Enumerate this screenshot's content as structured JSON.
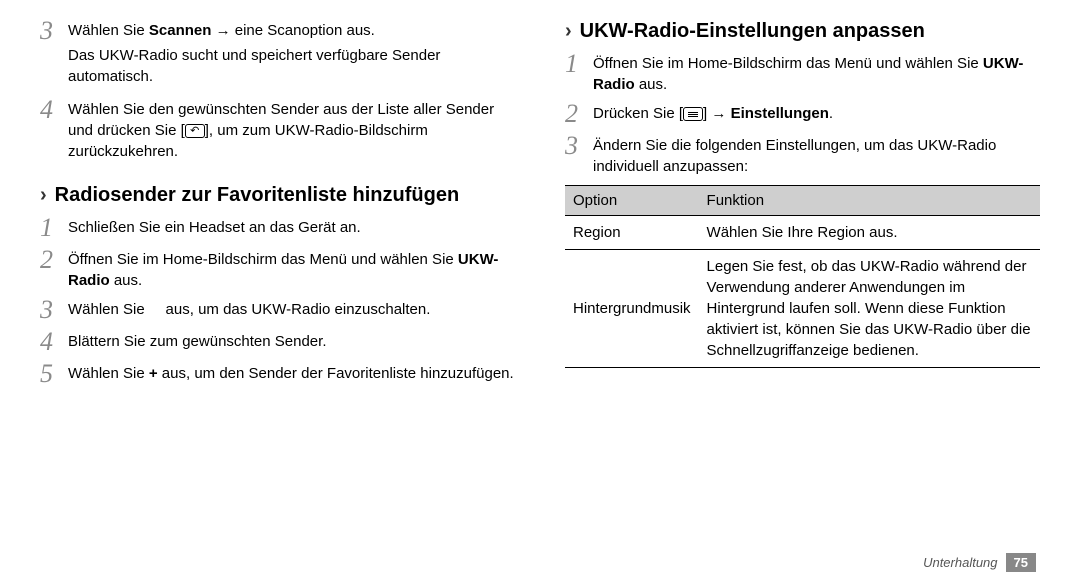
{
  "left": {
    "step3": {
      "line1_pre": "Wählen Sie ",
      "line1_bold": "Scannen",
      "line1_post": " → eine Scanoption aus.",
      "line2": "Das UKW-Radio sucht und speichert verfügbare Sender automatisch."
    },
    "step4": {
      "text_pre": "Wählen Sie den gewünschten Sender aus der Liste aller Sender und drücken Sie [",
      "text_post": "], um zum UKW-Radio-Bildschirm zurückzukehren."
    },
    "heading": "Radiosender zur Favoritenliste hinzufügen",
    "fav1": "Schließen Sie ein Headset an das Gerät an.",
    "fav2_pre": "Öffnen Sie im Home-Bildschirm das Menü und wählen Sie ",
    "fav2_bold": "UKW-Radio",
    "fav2_post": " aus.",
    "fav3_pre": "Wählen Sie ",
    "fav3_post": " aus, um das UKW-Radio einzuschalten.",
    "fav4": "Blättern Sie zum gewünschten Sender.",
    "fav5_pre": "Wählen Sie ",
    "fav5_bold": "+",
    "fav5_post": " aus, um den Sender der Favoritenliste hinzuzufügen."
  },
  "right": {
    "heading": "UKW-Radio-Einstellungen anpassen",
    "s1_pre": "Öffnen Sie im Home-Bildschirm das Menü und wählen Sie ",
    "s1_bold": "UKW-Radio",
    "s1_post": " aus.",
    "s2_pre": "Drücken Sie [",
    "s2_mid": "] → ",
    "s2_bold": "Einstellungen",
    "s2_post": ".",
    "s3": "Ändern Sie die folgenden Einstellungen, um das UKW-Radio individuell anzupassen:",
    "table": {
      "h1": "Option",
      "h2": "Funktion",
      "r1c1": "Region",
      "r1c2": "Wählen Sie Ihre Region aus.",
      "r2c1": "Hintergrundmusik",
      "r2c2": "Legen Sie fest, ob das UKW-Radio während der Verwendung anderer Anwendungen im Hintergrund laufen soll. Wenn diese Funktion aktiviert ist, können Sie das UKW-Radio über die Schnellzugriffanzeige bedienen."
    }
  },
  "footer": {
    "section": "Unterhaltung",
    "page": "75"
  },
  "nums": {
    "n1": "1",
    "n2": "2",
    "n3": "3",
    "n4": "4",
    "n5": "5"
  },
  "chevron": "›",
  "back_glyph": "↶"
}
